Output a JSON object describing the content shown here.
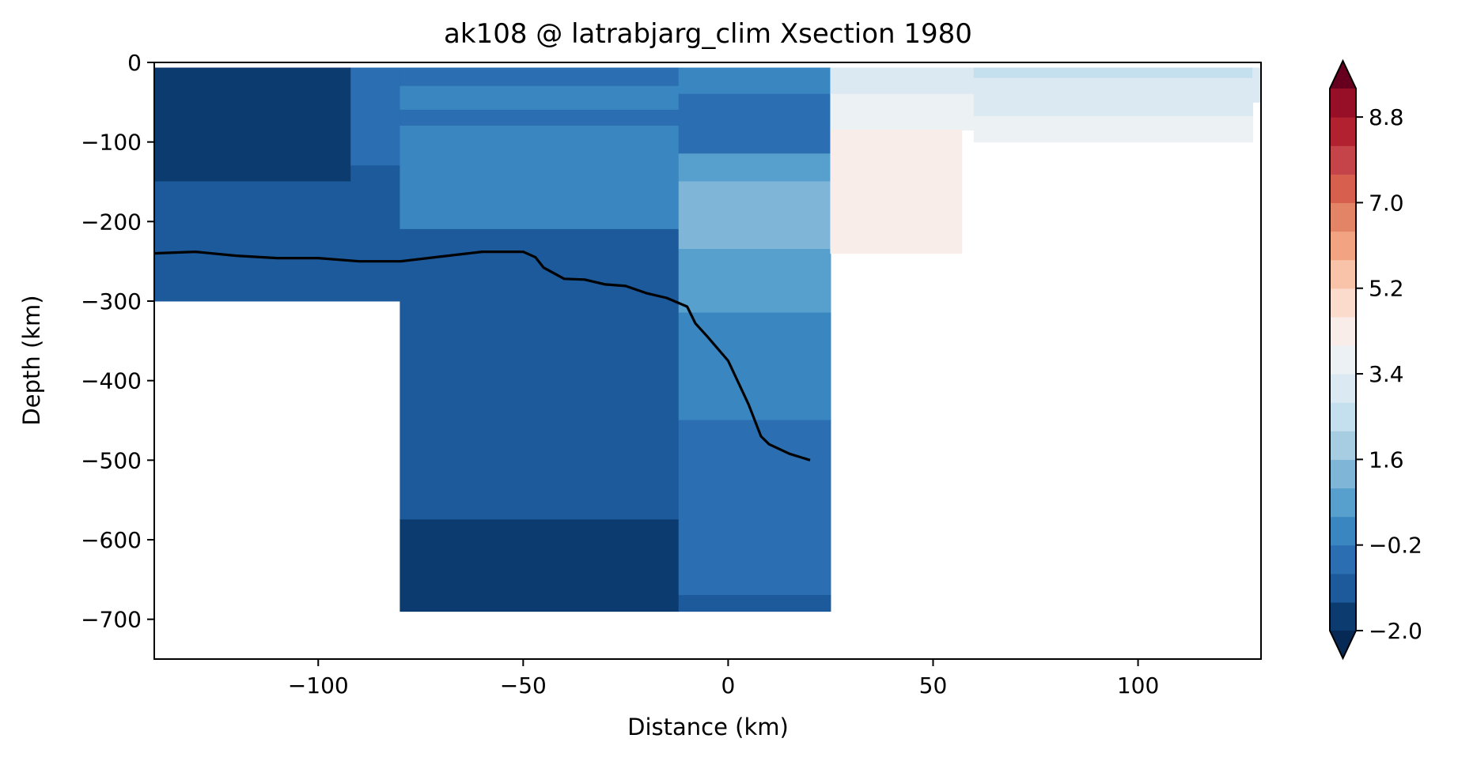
{
  "chart_data": {
    "type": "heatmap",
    "title": "ak108 @ latrabjarg_clim Xsection 1980",
    "xlabel": "Distance (km)",
    "ylabel": "Depth (km)",
    "xlim": [
      -140,
      130
    ],
    "ylim": [
      -750,
      0
    ],
    "xticks": [
      -100,
      -50,
      0,
      50,
      100
    ],
    "xtick_labels": [
      "−100",
      "−50",
      "0",
      "50",
      "100"
    ],
    "yticks": [
      0,
      -100,
      -200,
      -300,
      -400,
      -500,
      -600,
      -700
    ],
    "ytick_labels": [
      "0",
      "−100",
      "−200",
      "−300",
      "−400",
      "−500",
      "−600",
      "−700"
    ],
    "grid": false,
    "colormap": "RdBu_r",
    "colorbar": {
      "levels": [
        -2.0,
        -1.4,
        -0.8,
        -0.2,
        0.4,
        1.0,
        1.6,
        2.2,
        2.8,
        3.4,
        4.0,
        4.6,
        5.2,
        5.8,
        6.4,
        7.0,
        7.6,
        8.2,
        8.8,
        9.4
      ],
      "colors": [
        "#0c3b70",
        "#1c5a9c",
        "#2b6fb2",
        "#3986c0",
        "#579fcc",
        "#7fb6d7",
        "#a7cde3",
        "#c4dfed",
        "#dbe9f2",
        "#ecf1f4",
        "#f8ede8",
        "#fbdbcc",
        "#f8c3a8",
        "#f2a482",
        "#e48466",
        "#d6604d",
        "#c4444a",
        "#b2212f",
        "#960f27"
      ],
      "under_color": "#062a55",
      "over_color": "#67001f",
      "extend": "both",
      "ticks": [
        -2.0,
        -0.2,
        1.6,
        3.4,
        5.2,
        7.0,
        8.8
      ],
      "tick_labels": [
        "−2.0",
        "−0.2",
        "1.6",
        "3.4",
        "5.2",
        "7.0",
        "8.8"
      ]
    },
    "cells": [
      {
        "x": [
          -140,
          -92
        ],
        "y": [
          -7,
          -150
        ],
        "v": -2.0
      },
      {
        "x": [
          -140,
          -92
        ],
        "y": [
          -150,
          -300
        ],
        "v": -1.4
      },
      {
        "x": [
          -92,
          -80
        ],
        "y": [
          -7,
          -130
        ],
        "v": -0.8
      },
      {
        "x": [
          -92,
          -80
        ],
        "y": [
          -130,
          -300
        ],
        "v": -1.4
      },
      {
        "x": [
          -80,
          -12
        ],
        "y": [
          -7,
          -30
        ],
        "v": -0.8
      },
      {
        "x": [
          -80,
          -12
        ],
        "y": [
          -30,
          -60
        ],
        "v": -0.2
      },
      {
        "x": [
          -80,
          -12
        ],
        "y": [
          -60,
          -80
        ],
        "v": -0.8
      },
      {
        "x": [
          -80,
          -12
        ],
        "y": [
          -80,
          -160
        ],
        "v": -0.2
      },
      {
        "x": [
          -80,
          -12
        ],
        "y": [
          -160,
          -210
        ],
        "v": -0.2
      },
      {
        "x": [
          -80,
          -12
        ],
        "y": [
          -210,
          -575
        ],
        "v": -1.4
      },
      {
        "x": [
          -80,
          -12
        ],
        "y": [
          -575,
          -690
        ],
        "v": -2.0
      },
      {
        "x": [
          -12,
          25
        ],
        "y": [
          -7,
          -40
        ],
        "v": -0.2
      },
      {
        "x": [
          -12,
          25
        ],
        "y": [
          -40,
          -115
        ],
        "v": -0.8
      },
      {
        "x": [
          -12,
          25
        ],
        "y": [
          -115,
          -150
        ],
        "v": 0.4
      },
      {
        "x": [
          -12,
          25
        ],
        "y": [
          -150,
          -235
        ],
        "v": 1.0
      },
      {
        "x": [
          -12,
          25
        ],
        "y": [
          -235,
          -315
        ],
        "v": 0.4
      },
      {
        "x": [
          -12,
          25
        ],
        "y": [
          -315,
          -450
        ],
        "v": -0.2
      },
      {
        "x": [
          -12,
          25
        ],
        "y": [
          -450,
          -670
        ],
        "v": -0.8
      },
      {
        "x": [
          -12,
          25
        ],
        "y": [
          -670,
          -690
        ],
        "v": -1.4
      },
      {
        "x": [
          25,
          60
        ],
        "y": [
          -7,
          -40
        ],
        "v": 2.8
      },
      {
        "x": [
          25,
          60
        ],
        "y": [
          -40,
          -85
        ],
        "v": 3.4
      },
      {
        "x": [
          25,
          57
        ],
        "y": [
          -85,
          -240
        ],
        "v": 4.0
      },
      {
        "x": [
          60,
          128
        ],
        "y": [
          -7,
          -20
        ],
        "v": 2.2
      },
      {
        "x": [
          60,
          128
        ],
        "y": [
          -20,
          -68
        ],
        "v": 2.8
      },
      {
        "x": [
          60,
          128
        ],
        "y": [
          -68,
          -100
        ],
        "v": 3.4
      },
      {
        "x": [
          128,
          130
        ],
        "y": [
          -7,
          -50
        ],
        "v": 2.8
      }
    ],
    "line": {
      "color": "#000000",
      "x": [
        -140,
        -130,
        -120,
        -110,
        -100,
        -90,
        -80,
        -70,
        -60,
        -50,
        -47,
        -45,
        -40,
        -35,
        -30,
        -25,
        -20,
        -15,
        -10,
        -8,
        -5,
        0,
        5,
        8,
        10,
        15,
        20
      ],
      "y": [
        -240,
        -238,
        -243,
        -246,
        -246,
        -250,
        -250,
        -244,
        -238,
        -238,
        -245,
        -258,
        -272,
        -273,
        -279,
        -281,
        -290,
        -296,
        -307,
        -328,
        -345,
        -375,
        -430,
        -470,
        -480,
        -492,
        -500
      ]
    }
  }
}
